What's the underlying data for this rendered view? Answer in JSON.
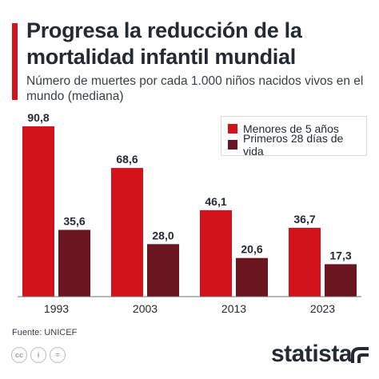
{
  "header": {
    "title": "Progresa la reducción de la mortalidad infantil mundial",
    "subtitle": "Número de muertes por cada 1.000 niños nacidos vivos en el mundo (mediana)"
  },
  "colors": {
    "accent": "#d3131c",
    "series_1": "#d3131c",
    "series_2": "#6b1521",
    "text": "#232a33",
    "axis": "#6b7178"
  },
  "chart_data": {
    "type": "bar",
    "categories": [
      "1993",
      "2003",
      "2013",
      "2023"
    ],
    "series": [
      {
        "name": "Menores de 5 años",
        "values": [
          90.8,
          68.6,
          46.1,
          36.7
        ],
        "labels": [
          "90,8",
          "68,6",
          "46,1",
          "36,7"
        ]
      },
      {
        "name": "Primeros 28 días de vida",
        "values": [
          35.6,
          28.0,
          20.6,
          17.3
        ],
        "labels": [
          "35,6",
          "28,0",
          "20,6",
          "17,3"
        ]
      }
    ],
    "ylim": [
      0,
      100
    ],
    "grid": false,
    "legend_position": "top-right",
    "title": "Progresa la reducción de la mortalidad infantil mundial",
    "xlabel": "",
    "ylabel": ""
  },
  "footer": {
    "source": "Fuente: UNICEF",
    "brand": "statista",
    "license_icons": [
      "cc-icon",
      "by-icon",
      "nd-icon"
    ],
    "license_glyphs": [
      "cc",
      "i",
      "="
    ]
  }
}
